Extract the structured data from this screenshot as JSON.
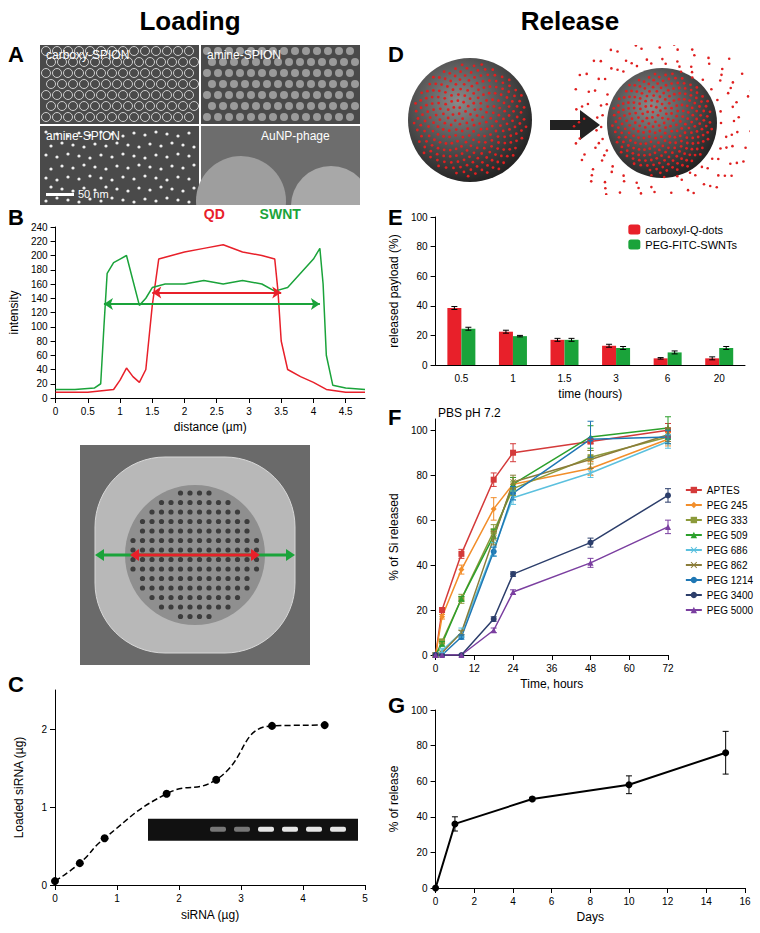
{
  "headings": [
    "Loading",
    "Release"
  ],
  "images": [
    {
      "panel": "A",
      "labels": [
        "carboxy-SPION",
        "amine-SPION",
        "amine-SPION",
        "AuNP-phage"
      ],
      "scale_bar": "50 nm"
    },
    {
      "panel": "D"
    }
  ],
  "chart_data": [
    {
      "panel": "B",
      "type": "line",
      "x_label": "distance (µm)",
      "y_label": "intensity",
      "xlim": [
        0,
        4.8
      ],
      "xticks": [
        0,
        0.5,
        1,
        1.5,
        2,
        2.5,
        3,
        3.5,
        4,
        4.5
      ],
      "ylim": [
        0,
        240
      ],
      "yticks": [
        0,
        20,
        40,
        60,
        80,
        100,
        120,
        140,
        160,
        180,
        200,
        220,
        240
      ],
      "grid": false,
      "marker": "none",
      "series": [
        {
          "name": "QD",
          "color": "#e8202a",
          "x": [
            0,
            0.5,
            0.9,
            1.0,
            1.1,
            1.2,
            1.3,
            1.4,
            1.5,
            1.6,
            1.8,
            2.0,
            2.3,
            2.6,
            2.9,
            3.2,
            3.4,
            3.45,
            3.5,
            3.6,
            3.8,
            4.0,
            4.2,
            4.5,
            4.8
          ],
          "values": [
            8,
            8,
            12,
            25,
            42,
            30,
            22,
            40,
            130,
            195,
            200,
            205,
            210,
            215,
            205,
            200,
            195,
            150,
            80,
            40,
            30,
            22,
            12,
            8,
            8
          ],
          "span": {
            "from": 1.5,
            "to": 3.5,
            "at": 148
          }
        },
        {
          "name": "SWNT",
          "color": "#1aa33a",
          "x": [
            0,
            0.3,
            0.6,
            0.7,
            0.75,
            0.8,
            0.9,
            1.0,
            1.1,
            1.2,
            1.3,
            1.4,
            1.5,
            1.7,
            2.0,
            2.3,
            2.6,
            2.9,
            3.2,
            3.4,
            3.6,
            3.8,
            4.0,
            4.1,
            4.15,
            4.2,
            4.3,
            4.5,
            4.8
          ],
          "values": [
            12,
            12,
            14,
            20,
            100,
            175,
            190,
            195,
            200,
            165,
            130,
            140,
            155,
            160,
            160,
            165,
            160,
            165,
            160,
            150,
            155,
            175,
            195,
            210,
            160,
            60,
            18,
            14,
            12
          ],
          "span": {
            "from": 0.75,
            "to": 4.1,
            "at": 132
          }
        }
      ]
    },
    {
      "panel": "C",
      "type": "line",
      "x_label": "siRNA (µg)",
      "y_label": "Loaded siRNA (µg)",
      "xlim": [
        0,
        5
      ],
      "xticks": [
        0,
        1,
        2,
        3,
        4,
        5
      ],
      "ylim": [
        0,
        2.5
      ],
      "yticks": [
        0,
        1,
        2
      ],
      "grid": false,
      "color": "#000000",
      "marker": "circle",
      "line_style": "dashed",
      "x": [
        0,
        0.4,
        0.8,
        1.8,
        2.6,
        3.5,
        4.35
      ],
      "values": [
        0.05,
        0.28,
        0.6,
        1.17,
        1.35,
        2.04,
        2.05
      ]
    },
    {
      "panel": "E",
      "type": "bar",
      "x_label": "time (hours)",
      "y_label": "released payload (%)",
      "categories": [
        "0.5",
        "1",
        "1.5",
        "3",
        "6",
        "20"
      ],
      "ylim": [
        0,
        100
      ],
      "yticks": [
        0,
        20,
        40,
        60,
        80,
        100
      ],
      "grid": false,
      "legend": "top-right",
      "series": [
        {
          "name": "carboxyl-Q-dots",
          "color": "#e8202a",
          "values": [
            38.5,
            22.5,
            17,
            13,
            4.5,
            4.5
          ],
          "errors": [
            1,
            1,
            1,
            1,
            0.5,
            1
          ]
        },
        {
          "name": "PEG-FITC-SWNTs",
          "color": "#1aa33a",
          "values": [
            24.5,
            19.5,
            17,
            11.5,
            8.5,
            11.5
          ],
          "errors": [
            1,
            0.5,
            1,
            1,
            1,
            1
          ]
        }
      ]
    },
    {
      "panel": "F",
      "type": "line",
      "annotation": "PBS pH 7.2",
      "x_label": "Time, hours",
      "y_label": "% of Si released",
      "xlim": [
        0,
        72
      ],
      "xticks": [
        0,
        12,
        24,
        36,
        48,
        60,
        72
      ],
      "ylim": [
        0,
        105
      ],
      "yticks": [
        0,
        20,
        40,
        60,
        80,
        100
      ],
      "grid": false,
      "legend": "right",
      "x": [
        0,
        2,
        8,
        18,
        24,
        48,
        72
      ],
      "series": [
        {
          "name": "APTES",
          "color": "#d43a3a",
          "marker": "square",
          "values": [
            0,
            20,
            45,
            78,
            90,
            95,
            100
          ],
          "errors": [
            0,
            1,
            2,
            3,
            4,
            1,
            3
          ]
        },
        {
          "name": "PEG 245",
          "color": "#f28e2b",
          "marker": "diamond",
          "values": [
            0,
            17,
            38,
            65,
            76,
            83,
            96
          ],
          "errors": [
            0,
            1,
            2,
            5,
            3,
            3,
            3
          ]
        },
        {
          "name": "PEG 333",
          "color": "#8c9a3b",
          "marker": "square",
          "values": [
            0,
            6,
            25,
            55,
            74,
            88,
            97
          ],
          "errors": [
            0,
            1,
            2,
            3,
            3,
            3,
            3
          ]
        },
        {
          "name": "PEG 509",
          "color": "#2ca02c",
          "marker": "triangle",
          "values": [
            0,
            5,
            25,
            53,
            76,
            97,
            101
          ],
          "errors": [
            0,
            1,
            1,
            3,
            3,
            5,
            5
          ]
        },
        {
          "name": "PEG 686",
          "color": "#5bc0de",
          "marker": "x",
          "values": [
            0,
            2,
            10,
            47,
            70,
            81,
            95
          ],
          "errors": [
            0,
            1,
            2,
            3,
            3,
            2,
            3
          ]
        },
        {
          "name": "PEG 862",
          "color": "#8b7d3a",
          "marker": "x",
          "values": [
            0,
            1,
            10,
            52,
            77,
            87,
            98
          ],
          "errors": [
            0,
            0,
            1,
            3,
            3,
            4,
            3
          ]
        },
        {
          "name": "PEG 1214",
          "color": "#1f77b4",
          "marker": "circle",
          "values": [
            0,
            0,
            8,
            46,
            72,
            96,
            97
          ],
          "errors": [
            0,
            0,
            1,
            2,
            3,
            8,
            3
          ]
        },
        {
          "name": "PEG 3400",
          "color": "#2c3e6b",
          "marker": "circle",
          "values": [
            0,
            0,
            0,
            16,
            36,
            50,
            71
          ],
          "errors": [
            0,
            0,
            0,
            1,
            1,
            2,
            3
          ]
        },
        {
          "name": "PEG 5000",
          "color": "#7b3fa0",
          "marker": "triangle",
          "values": [
            0,
            0,
            0,
            11,
            28,
            41,
            57
          ],
          "errors": [
            0,
            0,
            0,
            1,
            1,
            2,
            3
          ]
        }
      ]
    },
    {
      "panel": "G",
      "type": "line",
      "x_label": "Days",
      "y_label": "% of release",
      "xlim": [
        0,
        16
      ],
      "xticks": [
        0,
        2,
        4,
        6,
        8,
        10,
        12,
        14,
        16
      ],
      "ylim": [
        0,
        100
      ],
      "yticks": [
        0,
        20,
        40,
        60,
        80,
        100
      ],
      "grid": false,
      "color": "#000000",
      "marker": "circle",
      "x": [
        0,
        1,
        5,
        10,
        15
      ],
      "values": [
        0,
        36,
        50,
        58,
        76
      ],
      "errors": [
        0,
        4,
        1,
        5,
        12
      ]
    }
  ]
}
